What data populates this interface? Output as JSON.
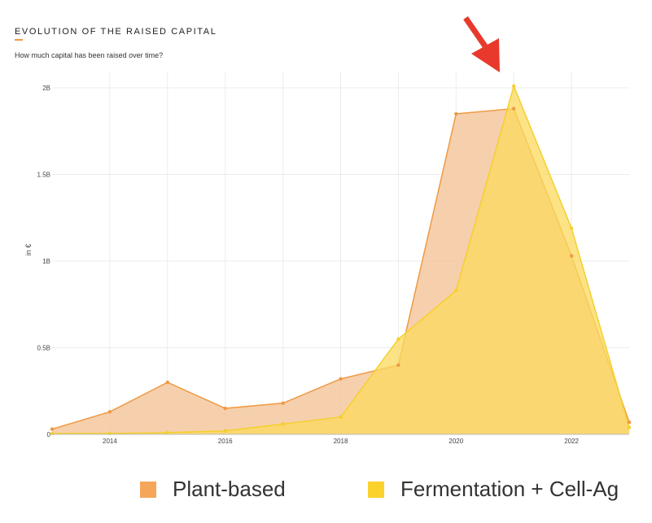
{
  "header": {
    "title": "EVOLUTION OF THE RAISED CAPITAL",
    "subtitle": "How much capital has been raised over time?"
  },
  "colors": {
    "plant_fill": "#f5c89f",
    "plant_line": "#ef9a43",
    "ferm_fill": "#fbd95e",
    "ferm_line": "#f5cf2e",
    "arrow": "#e8392c",
    "grid": "#ececec",
    "accent": "#f29a3a"
  },
  "annotation": {
    "icon": "red-arrow-icon"
  },
  "chart_data": {
    "type": "area",
    "title": "EVOLUTION OF THE RAISED CAPITAL",
    "subtitle": "How much capital has been raised over time?",
    "xlabel": "",
    "ylabel": "in €",
    "x": [
      2013,
      2014,
      2015,
      2016,
      2017,
      2018,
      2019,
      2020,
      2021,
      2022,
      2023
    ],
    "xlim": [
      2013,
      2023
    ],
    "ylim": [
      0,
      2.0
    ],
    "x_ticks": [
      2014,
      2016,
      2018,
      2020,
      2022
    ],
    "y_ticks": [
      0,
      0.5,
      1.0,
      1.5,
      2.0
    ],
    "y_tick_labels": [
      "0",
      "0.5B",
      "1B",
      "1.5B",
      "2B"
    ],
    "grid": true,
    "legend_position": "bottom",
    "series": [
      {
        "name": "Plant-based",
        "values": [
          0.03,
          0.13,
          0.3,
          0.15,
          0.18,
          0.32,
          0.4,
          1.85,
          1.88,
          1.03,
          0.07
        ]
      },
      {
        "name": "Fermentation + Cell-Ag",
        "values": [
          0.005,
          0.005,
          0.01,
          0.02,
          0.06,
          0.1,
          0.55,
          0.83,
          2.01,
          1.19,
          0.04
        ]
      }
    ]
  }
}
